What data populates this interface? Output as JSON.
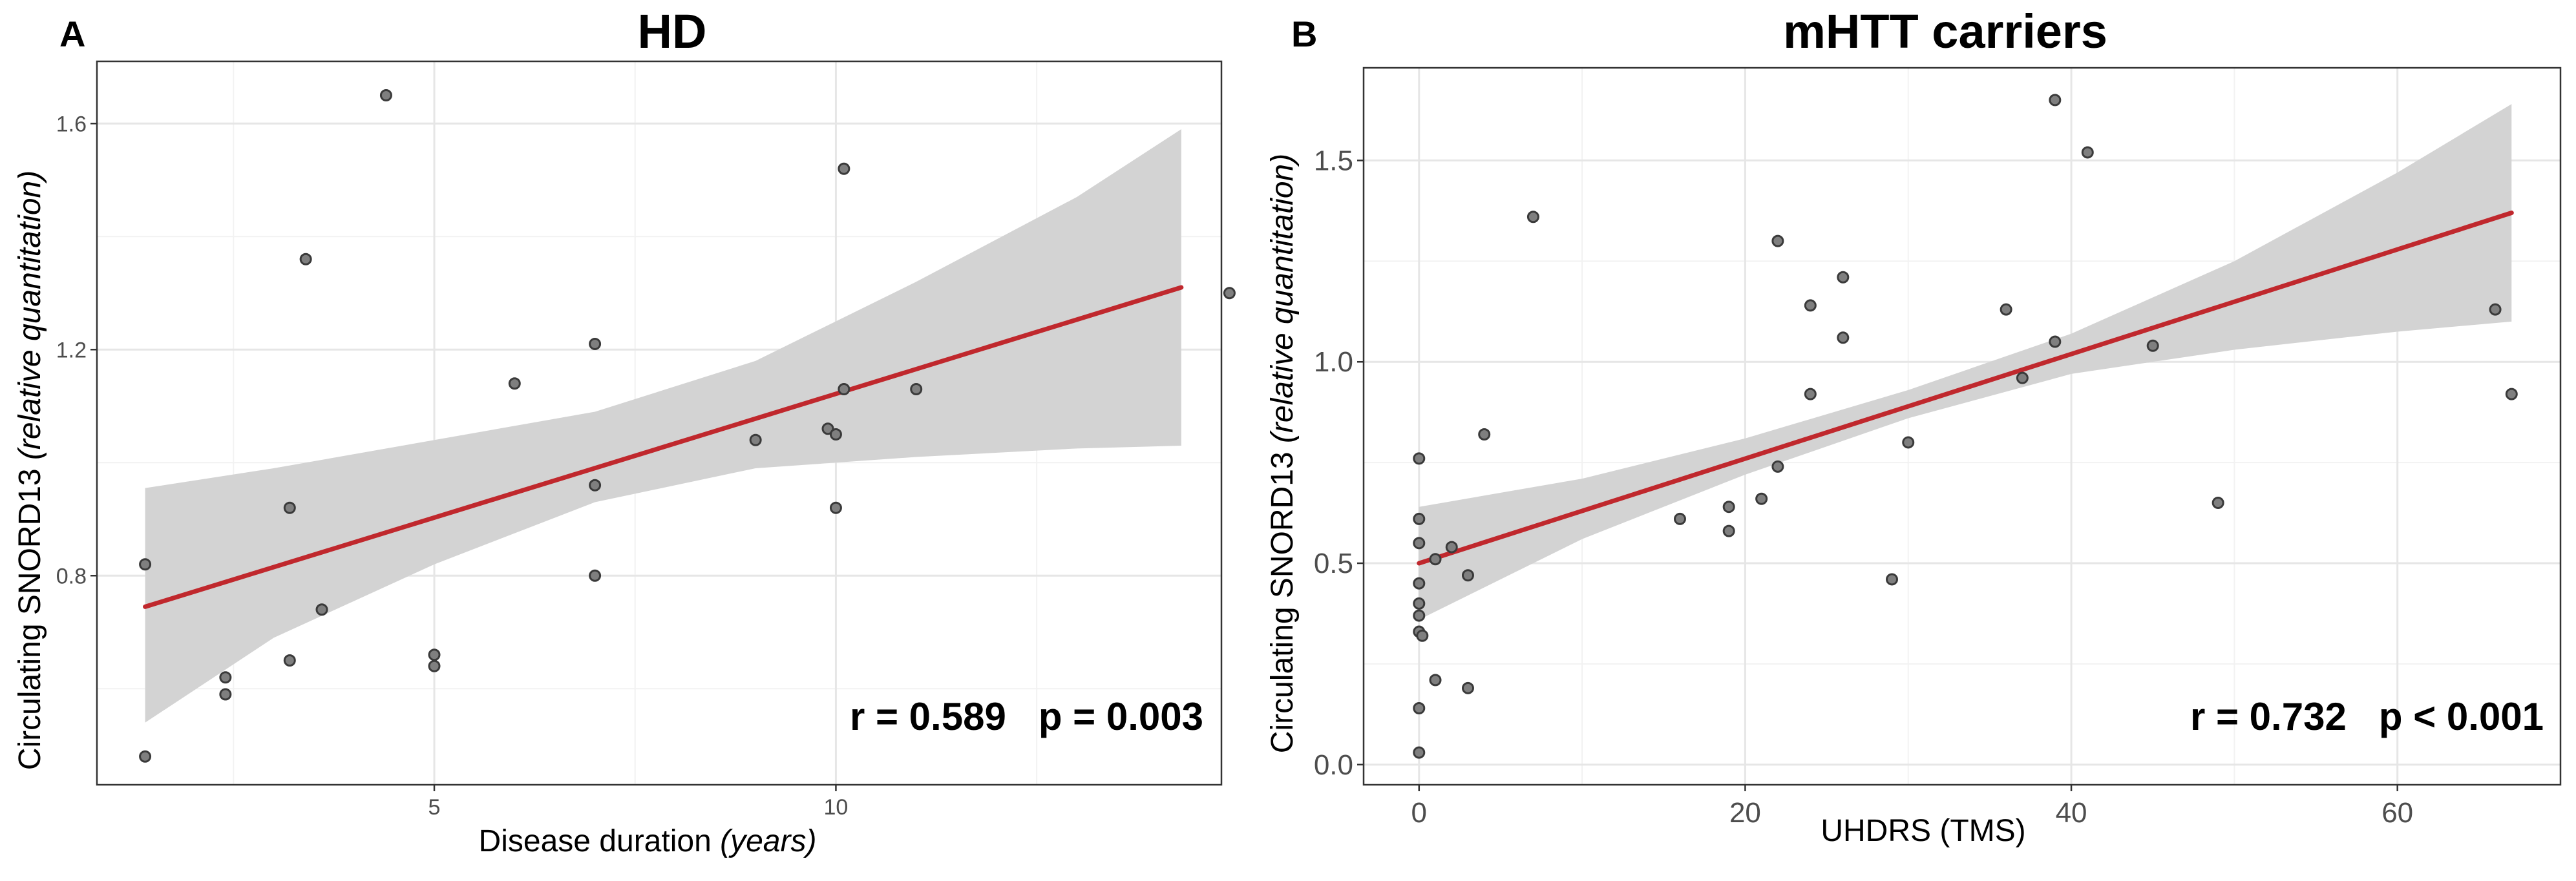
{
  "chart_data": [
    {
      "panel": "A",
      "type": "scatter",
      "title": "HD",
      "xlabel_main": "Disease duration ",
      "xlabel_italic": "(years)",
      "ylabel_main": "Circulating SNORD13 ",
      "ylabel_italic": "(relative quantitation)",
      "xlim": [
        0.8,
        14.8
      ],
      "ylim": [
        0.43,
        1.71
      ],
      "xticks": [
        5,
        10
      ],
      "yticks": [
        0.8,
        1.2,
        1.6
      ],
      "xtick_labels": [
        "5",
        "10"
      ],
      "ytick_labels": [
        "0.8",
        "1.2",
        "1.6"
      ],
      "points": [
        {
          "x": 1.4,
          "y": 0.82
        },
        {
          "x": 1.4,
          "y": 0.48
        },
        {
          "x": 2.4,
          "y": 0.62
        },
        {
          "x": 2.4,
          "y": 0.59
        },
        {
          "x": 3.2,
          "y": 0.92
        },
        {
          "x": 3.2,
          "y": 0.65
        },
        {
          "x": 3.4,
          "y": 1.36
        },
        {
          "x": 3.6,
          "y": 0.74
        },
        {
          "x": 4.4,
          "y": 1.65
        },
        {
          "x": 5.0,
          "y": 0.66
        },
        {
          "x": 5.0,
          "y": 0.64
        },
        {
          "x": 6.0,
          "y": 1.14
        },
        {
          "x": 7.0,
          "y": 1.21
        },
        {
          "x": 7.0,
          "y": 0.96
        },
        {
          "x": 7.0,
          "y": 0.8
        },
        {
          "x": 9.0,
          "y": 1.04
        },
        {
          "x": 9.9,
          "y": 1.06
        },
        {
          "x": 10.0,
          "y": 1.05
        },
        {
          "x": 10.0,
          "y": 0.92
        },
        {
          "x": 10.1,
          "y": 1.52
        },
        {
          "x": 10.1,
          "y": 1.13
        },
        {
          "x": 11.0,
          "y": 1.13
        },
        {
          "x": 14.9,
          "y": 1.3
        }
      ],
      "fit": {
        "x0": 1.4,
        "y0": 0.745,
        "x1": 14.3,
        "y1": 1.31
      },
      "band": {
        "x": [
          1.4,
          3,
          5,
          7,
          9,
          11,
          13,
          14.3
        ],
        "lower": [
          0.54,
          0.69,
          0.82,
          0.93,
          0.99,
          1.01,
          1.025,
          1.03
        ],
        "upper": [
          0.955,
          0.99,
          1.04,
          1.09,
          1.18,
          1.32,
          1.47,
          1.59
        ]
      },
      "stat_text": "r = 0.589   p = 0.003"
    },
    {
      "panel": "B",
      "type": "scatter",
      "title": "mHTT carriers",
      "xlabel": "UHDRS (TMS)",
      "ylabel_main": "Circulating SNORD13 ",
      "ylabel_italic": "(relative quantitation)",
      "xlim": [
        -3.4,
        70.0
      ],
      "ylim": [
        -0.05,
        1.73
      ],
      "xticks": [
        0,
        20,
        40,
        60
      ],
      "yticks": [
        0.0,
        0.5,
        1.0,
        1.5
      ],
      "xtick_labels": [
        "0",
        "20",
        "40",
        "60"
      ],
      "ytick_labels": [
        "0.0",
        "0.5",
        "1.0",
        "1.5"
      ],
      "points": [
        {
          "x": 0,
          "y": 0.76
        },
        {
          "x": 0,
          "y": 0.61
        },
        {
          "x": 0,
          "y": 0.55
        },
        {
          "x": 0,
          "y": 0.45
        },
        {
          "x": 0,
          "y": 0.4
        },
        {
          "x": 0,
          "y": 0.37
        },
        {
          "x": 0,
          "y": 0.33
        },
        {
          "x": 0.2,
          "y": 0.32
        },
        {
          "x": 0,
          "y": 0.14
        },
        {
          "x": 0,
          "y": 0.03
        },
        {
          "x": 1,
          "y": 0.51
        },
        {
          "x": 2,
          "y": 0.54
        },
        {
          "x": 1,
          "y": 0.21
        },
        {
          "x": 3,
          "y": 0.47
        },
        {
          "x": 3,
          "y": 0.19
        },
        {
          "x": 4,
          "y": 0.82
        },
        {
          "x": 7,
          "y": 1.36
        },
        {
          "x": 16,
          "y": 0.61
        },
        {
          "x": 19,
          "y": 0.64
        },
        {
          "x": 19,
          "y": 0.58
        },
        {
          "x": 21,
          "y": 0.66
        },
        {
          "x": 22,
          "y": 1.3
        },
        {
          "x": 22,
          "y": 0.74
        },
        {
          "x": 24,
          "y": 1.14
        },
        {
          "x": 24,
          "y": 0.92
        },
        {
          "x": 26,
          "y": 1.21
        },
        {
          "x": 26,
          "y": 1.06
        },
        {
          "x": 29,
          "y": 0.46
        },
        {
          "x": 30,
          "y": 0.8
        },
        {
          "x": 36,
          "y": 1.13
        },
        {
          "x": 37,
          "y": 0.96
        },
        {
          "x": 39,
          "y": 1.65
        },
        {
          "x": 39,
          "y": 1.05
        },
        {
          "x": 41,
          "y": 1.52
        },
        {
          "x": 45,
          "y": 1.04
        },
        {
          "x": 49,
          "y": 0.65
        },
        {
          "x": 66,
          "y": 1.13
        },
        {
          "x": 67,
          "y": 0.92
        }
      ],
      "fit": {
        "x0": 0,
        "y0": 0.5,
        "x1": 67,
        "y1": 1.37
      },
      "band": {
        "x": [
          0,
          10,
          20,
          30,
          40,
          50,
          60,
          67
        ],
        "lower": [
          0.36,
          0.56,
          0.72,
          0.86,
          0.97,
          1.03,
          1.075,
          1.1
        ],
        "upper": [
          0.64,
          0.71,
          0.81,
          0.93,
          1.07,
          1.25,
          1.47,
          1.64
        ]
      },
      "stat_text": "r = 0.732   p < 0.001"
    }
  ],
  "colors": {
    "fit_line": "#c0282d",
    "confidence_band": "#d3d3d3",
    "point_fill": "#7f7f7f",
    "point_stroke": "#3a3a3a",
    "grid": "#e6e6e6"
  }
}
